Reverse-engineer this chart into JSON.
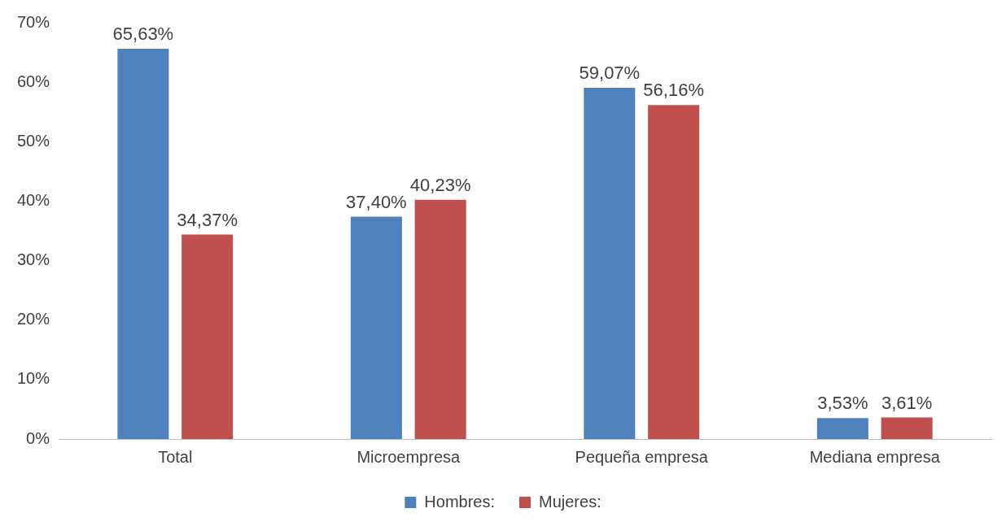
{
  "chart_data": {
    "type": "bar",
    "categories": [
      "Total",
      "Microempresa",
      "Pequeña empresa",
      "Mediana empresa"
    ],
    "series": [
      {
        "name": "Hombres:",
        "color": "#4f81bd",
        "values": [
          65.63,
          37.4,
          59.07,
          3.53
        ],
        "value_labels": [
          "65,63%",
          "37,40%",
          "59,07%",
          "3,53%"
        ]
      },
      {
        "name": "Mujeres:",
        "color": "#c0504d",
        "values": [
          34.37,
          40.23,
          56.16,
          3.61
        ],
        "value_labels": [
          "34,37%",
          "40,23%",
          "56,16%",
          "3,61%"
        ]
      }
    ],
    "ylim": [
      0,
      70
    ],
    "yticks": [
      {
        "value": 0,
        "label": "0%"
      },
      {
        "value": 10,
        "label": "10%"
      },
      {
        "value": 20,
        "label": "20%"
      },
      {
        "value": 30,
        "label": "30%"
      },
      {
        "value": 40,
        "label": "40%"
      },
      {
        "value": 50,
        "label": "50%"
      },
      {
        "value": 60,
        "label": "60%"
      },
      {
        "value": 70,
        "label": "70%"
      }
    ],
    "grid": false,
    "legend": "bottom"
  }
}
